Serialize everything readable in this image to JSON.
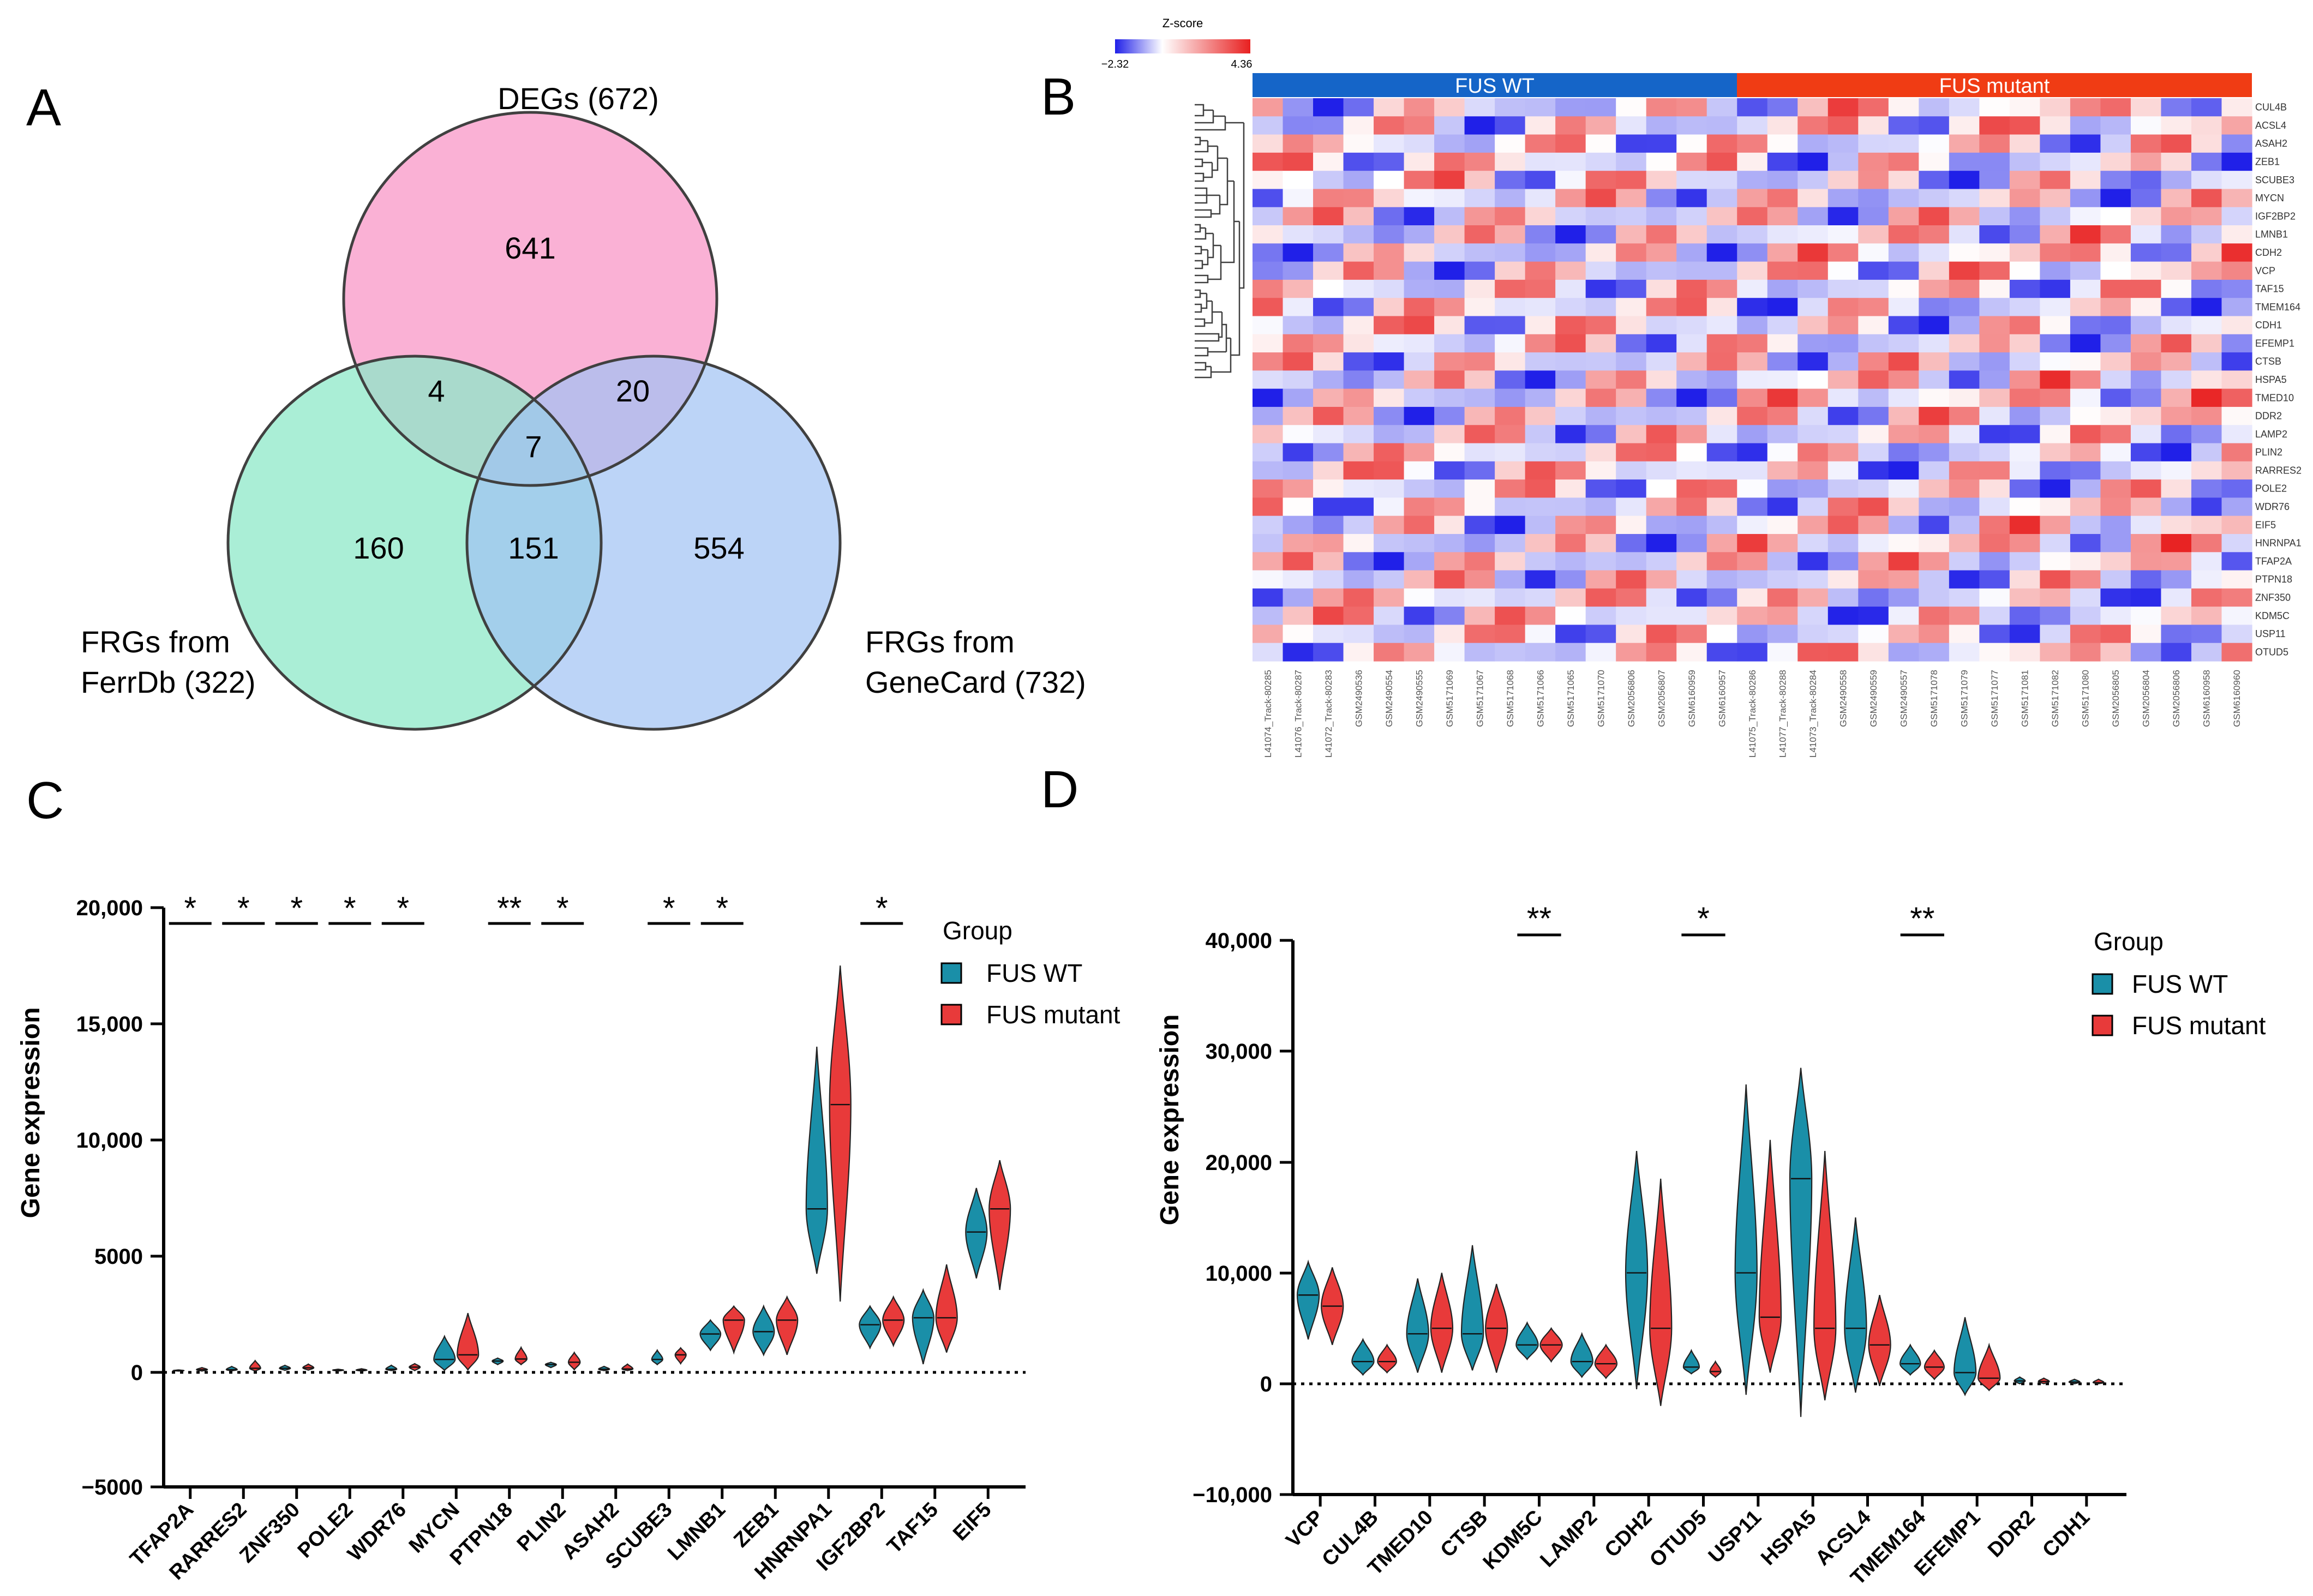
{
  "panels": {
    "A": {
      "label": "A",
      "sets": [
        {
          "name": "DEGs (672)",
          "color": "#f9a8d0"
        },
        {
          "name": "FRGs from FerrDb (322)",
          "line1": "FRGs from",
          "line2": "FerrDb (322)",
          "color": "#8de8c8"
        },
        {
          "name": "FRGs from GeneCard (732)",
          "line1": "FRGs from",
          "line2": "GeneCard (732)",
          "color": "#9fc2f4"
        }
      ],
      "counts": {
        "degs_only": "641",
        "degs_ferrdb": "4",
        "degs_genecard": "20",
        "all_three": "7",
        "ferrdb_only": "160",
        "ferrdb_genecard": "151",
        "genecard_only": "554"
      }
    },
    "B": {
      "label": "B",
      "legend": {
        "title": "Z-score",
        "min": "−2.32",
        "max": "4.36",
        "low_color": "#2020e8",
        "high_color": "#e82020"
      },
      "groups": [
        {
          "name": "FUS WT",
          "color": "#1565c8"
        },
        {
          "name": "FUS mutant",
          "color": "#f03c14"
        }
      ],
      "genes": [
        "CUL4B",
        "ACSL4",
        "ASAH2",
        "ZEB1",
        "SCUBE3",
        "MYCN",
        "IGF2BP2",
        "LMNB1",
        "CDH2",
        "VCP",
        "TAF15",
        "TMEM164",
        "CDH1",
        "EFEMP1",
        "CTSB",
        "HSPA5",
        "TMED10",
        "DDR2",
        "LAMP2",
        "PLIN2",
        "RARRES2",
        "POLE2",
        "WDR76",
        "EIF5",
        "HNRNPA1",
        "TFAP2A",
        "PTPN18",
        "ZNF350",
        "KDM5C",
        "USP11",
        "OTUD5"
      ],
      "samples_wt": [
        "L41074_Track-80285",
        "L41076_Track-80287",
        "L41072_Track-80283",
        "GSM2490536",
        "GSM2490554",
        "GSM2490555",
        "GSM5171069",
        "GSM5171067",
        "GSM5171068",
        "GSM5171066",
        "GSM5171065",
        "GSM5171070",
        "GSM2056806",
        "GSM2056807",
        "GSM6160959",
        "GSM6160957"
      ],
      "samples_mut": [
        "L41075_Track-80286",
        "L41077_Track-80288",
        "L41073_Track-80284",
        "GSM2490558",
        "GSM2490559",
        "GSM2490557",
        "GSM5171078",
        "GSM5171079",
        "GSM5171077",
        "GSM5171081",
        "GSM5171082",
        "GSM5171080",
        "GSM2056805",
        "GSM2056804",
        "GSM2056806",
        "GSM6160958",
        "GSM6160960"
      ]
    },
    "C": {
      "label": "C",
      "ylabel": "Gene expression",
      "legend_title": "Group",
      "legend_items": [
        "FUS WT",
        "FUS mutant"
      ],
      "yticks": [
        "20,000",
        "15,000",
        "10,000",
        "5000",
        "0",
        "−5000"
      ]
    },
    "D": {
      "label": "D",
      "ylabel": "Gene expression",
      "legend_title": "Group",
      "legend_items": [
        "FUS WT",
        "FUS mutant"
      ],
      "yticks": [
        "40,000",
        "30,000",
        "20,000",
        "10,000",
        "0",
        "−10,000"
      ]
    }
  },
  "chart_data": [
    {
      "panel": "C",
      "type": "violin",
      "ylabel": "Gene expression",
      "ylim": [
        -5000,
        20000
      ],
      "categories": [
        "TFAP2A",
        "RARRES2",
        "ZNF350",
        "POLE2",
        "WDR76",
        "MYCN",
        "PTPN18",
        "PLIN2",
        "ASAH2",
        "SCUBE3",
        "LMNB1",
        "ZEB1",
        "HNRNPA1",
        "IGF2BP2",
        "TAF15",
        "EIF5"
      ],
      "series": [
        {
          "name": "FUS WT",
          "color": "#1a8fa8",
          "min": [
            0,
            10,
            30,
            0,
            20,
            30,
            280,
            150,
            20,
            280,
            900,
            700,
            4200,
            1000,
            300,
            4000
          ],
          "max": [
            50,
            200,
            250,
            80,
            250,
            1500,
            560,
            380,
            200,
            900,
            2200,
            2800,
            14000,
            2800,
            3500,
            7900
          ],
          "median": [
            20,
            60,
            120,
            40,
            80,
            500,
            430,
            280,
            80,
            500,
            1600,
            1700,
            7000,
            2000,
            2300,
            6000
          ]
        },
        {
          "name": "FUS mutant",
          "color": "#e83a3a",
          "min": [
            0,
            0,
            40,
            0,
            20,
            50,
            280,
            60,
            20,
            320,
            800,
            700,
            3000,
            1100,
            800,
            3500
          ],
          "max": [
            150,
            450,
            300,
            100,
            320,
            2500,
            1020,
            800,
            300,
            1000,
            2800,
            3200,
            17500,
            3200,
            4600,
            9100
          ],
          "median": [
            60,
            120,
            140,
            40,
            170,
            700,
            520,
            380,
            90,
            700,
            2200,
            2200,
            11500,
            2200,
            2300,
            7000
          ]
        }
      ],
      "significance": [
        {
          "category": "TFAP2A",
          "mark": "*"
        },
        {
          "category": "RARRES2",
          "mark": "*"
        },
        {
          "category": "ZNF350",
          "mark": "*"
        },
        {
          "category": "POLE2",
          "mark": "*"
        },
        {
          "category": "WDR76",
          "mark": "*"
        },
        {
          "category": "PTPN18",
          "mark": "**"
        },
        {
          "category": "PLIN2",
          "mark": "*"
        },
        {
          "category": "SCUBE3",
          "mark": "*"
        },
        {
          "category": "LMNB1",
          "mark": "*"
        },
        {
          "category": "IGF2BP2",
          "mark": "*"
        }
      ]
    },
    {
      "panel": "D",
      "type": "violin",
      "ylabel": "Gene expression",
      "ylim": [
        -10000,
        40000
      ],
      "categories": [
        "VCP",
        "CUL4B",
        "TMED10",
        "CTSB",
        "KDM5C",
        "LAMP2",
        "CDH2",
        "OTUD5",
        "USP11",
        "HSPA5",
        "ACSL4",
        "TMEM164",
        "EFEMP1",
        "DDR2",
        "CDH1"
      ],
      "series": [
        {
          "name": "FUS WT",
          "color": "#1a8fa8",
          "min": [
            4000,
            800,
            1000,
            1200,
            2200,
            600,
            -500,
            900,
            -1000,
            -3000,
            -800,
            800,
            -1000,
            0,
            0
          ],
          "max": [
            11000,
            4000,
            9500,
            12500,
            5500,
            4500,
            21000,
            3000,
            27000,
            28500,
            15000,
            3500,
            6000,
            600,
            400
          ],
          "median": [
            8000,
            2000,
            4500,
            4500,
            3500,
            2000,
            10000,
            1500,
            10000,
            18500,
            5000,
            1800,
            1000,
            250,
            150
          ]
        },
        {
          "name": "FUS mutant",
          "color": "#e83a3a",
          "min": [
            3500,
            1000,
            1000,
            1000,
            2000,
            500,
            -2000,
            600,
            1000,
            -1500,
            -200,
            400,
            -600,
            0,
            0
          ],
          "max": [
            10500,
            3500,
            10000,
            9000,
            5000,
            3500,
            18500,
            2000,
            22000,
            21000,
            8000,
            3000,
            3500,
            500,
            400
          ],
          "median": [
            7000,
            2000,
            5000,
            5000,
            3500,
            1800,
            5000,
            1100,
            6000,
            5000,
            3500,
            1500,
            500,
            200,
            100
          ]
        }
      ],
      "significance": [
        {
          "category": "KDM5C",
          "mark": "**"
        },
        {
          "category": "OTUD5",
          "mark": "*"
        },
        {
          "category": "TMEM164",
          "mark": "**"
        }
      ]
    }
  ]
}
